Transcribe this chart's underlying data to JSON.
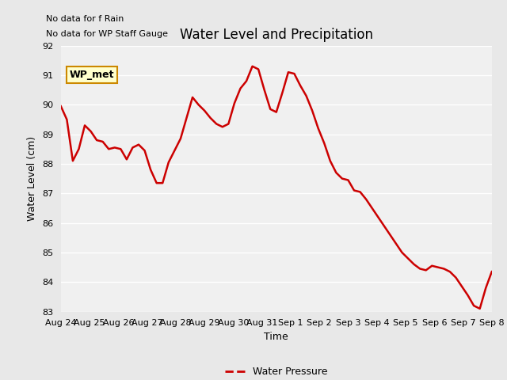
{
  "title": "Water Level and Precipitation",
  "xlabel": "Time",
  "ylabel": "Water Level (cm)",
  "ylim": [
    83.0,
    92.0
  ],
  "yticks": [
    83.0,
    84.0,
    85.0,
    86.0,
    87.0,
    88.0,
    89.0,
    90.0,
    91.0,
    92.0
  ],
  "line_color": "#cc0000",
  "line_width": 1.8,
  "bg_color": "#e8e8e8",
  "plot_bg_color": "#f0f0f0",
  "annotations_top_left": [
    "No data for f Rain",
    "No data for WP Staff Gauge"
  ],
  "legend_label": "Water Pressure",
  "wp_met_label": "WP_met",
  "wp_met_bg": "#ffffcc",
  "wp_met_border": "#cc8800",
  "x_labels": [
    "Aug 24",
    "Aug 25",
    "Aug 26",
    "Aug 27",
    "Aug 28",
    "Aug 29",
    "Aug 30",
    "Aug 31",
    "Sep 1",
    "Sep 2",
    "Sep 3",
    "Sep 4",
    "Sep 5",
    "Sep 6",
    "Sep 7",
    "Sep 8"
  ],
  "x_values": [
    0,
    1,
    2,
    3,
    4,
    5,
    6,
    7,
    8,
    9,
    10,
    11,
    12,
    13,
    14,
    15
  ],
  "y_values": [
    89.95,
    89.5,
    88.1,
    88.5,
    89.3,
    89.1,
    88.8,
    88.75,
    88.5,
    88.55,
    88.5,
    88.15,
    88.55,
    88.65,
    88.45,
    87.8,
    87.35,
    87.35,
    88.05,
    88.45,
    88.85,
    89.55,
    90.25,
    90.0,
    89.8,
    89.55,
    89.35,
    89.25,
    89.35,
    90.05,
    90.55,
    90.8,
    91.3,
    91.2,
    90.5,
    89.85,
    89.75,
    90.4,
    91.1,
    91.05,
    90.65,
    90.3,
    89.8,
    89.2,
    88.7,
    88.1,
    87.7,
    87.5,
    87.45,
    87.1,
    87.05,
    86.8,
    86.5,
    86.2,
    85.9,
    85.6,
    85.3,
    85.0,
    84.8,
    84.6,
    84.45,
    84.4,
    84.55,
    84.5,
    84.45,
    84.35,
    84.15,
    83.85,
    83.55,
    83.2,
    83.1,
    83.8,
    84.35
  ]
}
